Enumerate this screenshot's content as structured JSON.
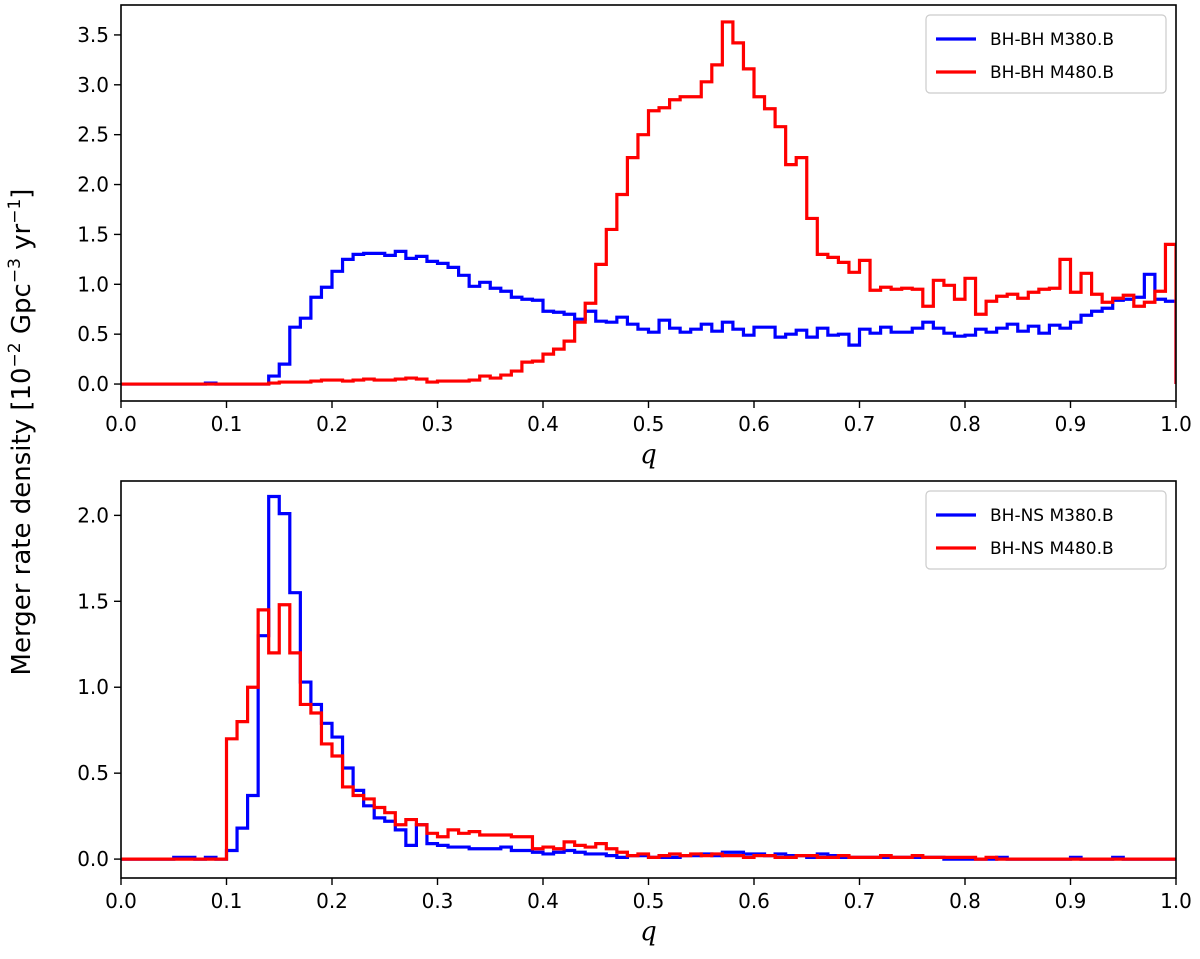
{
  "figure": {
    "ylabel_main": "Merger rate density [10",
    "ylabel_sup1": "−2",
    "ylabel_mid": " Gpc",
    "ylabel_sup2": "−3",
    "ylabel_mid2": " yr",
    "ylabel_sup3": "−1",
    "ylabel_end": "]"
  },
  "colors": {
    "blue": "#0000ff",
    "red": "#ff0000"
  },
  "chart_data": [
    {
      "type": "line",
      "step": true,
      "xlabel": "q",
      "xlim": [
        0.0,
        1.0
      ],
      "ylim": [
        -0.17,
        3.8
      ],
      "xticks": [
        "0.0",
        "0.1",
        "0.2",
        "0.3",
        "0.4",
        "0.5",
        "0.6",
        "0.7",
        "0.8",
        "0.9",
        "1.0"
      ],
      "yticks": [
        "0.0",
        "0.5",
        "1.0",
        "1.5",
        "2.0",
        "2.5",
        "3.0",
        "3.5"
      ],
      "legend_position": "top-right",
      "bin_width": 0.01,
      "series": [
        {
          "name": "BH-BH M380.B",
          "color": "#0000ff",
          "values": [
            0,
            0,
            0,
            0,
            0,
            0,
            0,
            0,
            0.01,
            0,
            0,
            0,
            0,
            0,
            0.08,
            0.2,
            0.57,
            0.66,
            0.87,
            0.97,
            1.13,
            1.25,
            1.3,
            1.31,
            1.31,
            1.29,
            1.33,
            1.26,
            1.28,
            1.23,
            1.21,
            1.17,
            1.09,
            0.98,
            1.02,
            0.96,
            0.93,
            0.87,
            0.85,
            0.84,
            0.73,
            0.72,
            0.7,
            0.65,
            0.73,
            0.63,
            0.62,
            0.67,
            0.6,
            0.55,
            0.52,
            0.64,
            0.56,
            0.52,
            0.55,
            0.6,
            0.53,
            0.62,
            0.55,
            0.49,
            0.57,
            0.57,
            0.47,
            0.5,
            0.54,
            0.47,
            0.56,
            0.49,
            0.5,
            0.39,
            0.55,
            0.51,
            0.57,
            0.52,
            0.52,
            0.56,
            0.62,
            0.56,
            0.51,
            0.48,
            0.49,
            0.55,
            0.52,
            0.56,
            0.6,
            0.53,
            0.58,
            0.51,
            0.59,
            0.56,
            0.62,
            0.69,
            0.73,
            0.76,
            0.84,
            0.85,
            0.87,
            1.1,
            0.85,
            0.83
          ]
        },
        {
          "name": "BH-BH M480.B",
          "color": "#ff0000",
          "values": [
            0,
            0,
            0,
            0,
            0,
            0,
            0,
            0,
            0,
            0,
            0,
            0,
            0,
            0,
            0.01,
            0.02,
            0.02,
            0.02,
            0.03,
            0.04,
            0.04,
            0.03,
            0.04,
            0.05,
            0.04,
            0.04,
            0.05,
            0.06,
            0.05,
            0.02,
            0.03,
            0.03,
            0.03,
            0.04,
            0.08,
            0.06,
            0.09,
            0.13,
            0.22,
            0.23,
            0.3,
            0.35,
            0.43,
            0.62,
            0.81,
            1.2,
            1.55,
            1.9,
            2.27,
            2.5,
            2.74,
            2.77,
            2.85,
            2.88,
            2.88,
            3.03,
            3.2,
            3.63,
            3.42,
            3.16,
            2.88,
            2.76,
            2.58,
            2.2,
            2.27,
            1.66,
            1.3,
            1.27,
            1.22,
            1.12,
            1.24,
            0.94,
            0.97,
            0.95,
            0.96,
            0.95,
            0.78,
            1.04,
            0.99,
            0.85,
            1.06,
            0.7,
            0.83,
            0.88,
            0.9,
            0.86,
            0.92,
            0.95,
            0.96,
            1.25,
            0.92,
            1.11,
            0.9,
            0.82,
            0.86,
            0.89,
            0.78,
            0.82,
            0.93,
            1.4
          ]
        }
      ]
    },
    {
      "type": "line",
      "step": true,
      "xlabel": "q",
      "xlim": [
        0.0,
        1.0
      ],
      "ylim": [
        -0.11,
        2.2
      ],
      "xticks": [
        "0.0",
        "0.1",
        "0.2",
        "0.3",
        "0.4",
        "0.5",
        "0.6",
        "0.7",
        "0.8",
        "0.9",
        "1.0"
      ],
      "yticks": [
        "0.0",
        "0.5",
        "1.0",
        "1.5",
        "2.0"
      ],
      "legend_position": "top-right",
      "bin_width": 0.01,
      "series": [
        {
          "name": "BH-NS M380.B",
          "color": "#0000ff",
          "values": [
            0,
            0,
            0,
            0,
            0,
            0.01,
            0.01,
            0,
            0.01,
            0,
            0.05,
            0.18,
            0.37,
            1.3,
            2.11,
            2.01,
            1.55,
            1.03,
            0.9,
            0.79,
            0.71,
            0.53,
            0.4,
            0.31,
            0.24,
            0.22,
            0.17,
            0.08,
            0.2,
            0.09,
            0.08,
            0.07,
            0.07,
            0.06,
            0.06,
            0.06,
            0.07,
            0.05,
            0.05,
            0.04,
            0.03,
            0.04,
            0.05,
            0.04,
            0.03,
            0.03,
            0.02,
            0.01,
            0.02,
            0.02,
            0.01,
            0.01,
            0.01,
            0.02,
            0.02,
            0.03,
            0.02,
            0.04,
            0.04,
            0.03,
            0.03,
            0.02,
            0.03,
            0.02,
            0.02,
            0.01,
            0.03,
            0.02,
            0.01,
            0.01,
            0.01,
            0.01,
            0.01,
            0.01,
            0.01,
            0.01,
            0.01,
            0.01,
            0,
            0,
            0,
            0,
            0,
            0.01,
            0,
            0,
            0,
            0,
            0,
            0,
            0.01,
            0,
            0,
            0,
            0.01,
            0,
            0,
            0,
            0,
            0
          ]
        },
        {
          "name": "BH-NS M480.B",
          "color": "#ff0000",
          "values": [
            0,
            0,
            0,
            0,
            0,
            0,
            0,
            0,
            0,
            0,
            0.7,
            0.8,
            1.0,
            1.45,
            1.2,
            1.48,
            1.2,
            0.9,
            0.85,
            0.67,
            0.6,
            0.42,
            0.37,
            0.35,
            0.3,
            0.27,
            0.2,
            0.23,
            0.2,
            0.15,
            0.13,
            0.17,
            0.15,
            0.16,
            0.14,
            0.14,
            0.14,
            0.13,
            0.13,
            0.06,
            0.07,
            0.06,
            0.1,
            0.08,
            0.07,
            0.09,
            0.06,
            0.04,
            0.02,
            0.03,
            0.01,
            0.02,
            0.03,
            0.02,
            0.03,
            0.02,
            0.03,
            0.02,
            0.02,
            0.01,
            0.02,
            0.02,
            0.01,
            0.01,
            0.02,
            0.02,
            0.01,
            0.01,
            0.02,
            0.01,
            0.01,
            0.01,
            0.02,
            0.01,
            0.01,
            0.02,
            0.01,
            0.01,
            0.01,
            0.01,
            0.01,
            0,
            0.01,
            0,
            0,
            0,
            0,
            0,
            0,
            0,
            0,
            0,
            0,
            0,
            0,
            0,
            0,
            0,
            0,
            0
          ]
        }
      ]
    }
  ]
}
